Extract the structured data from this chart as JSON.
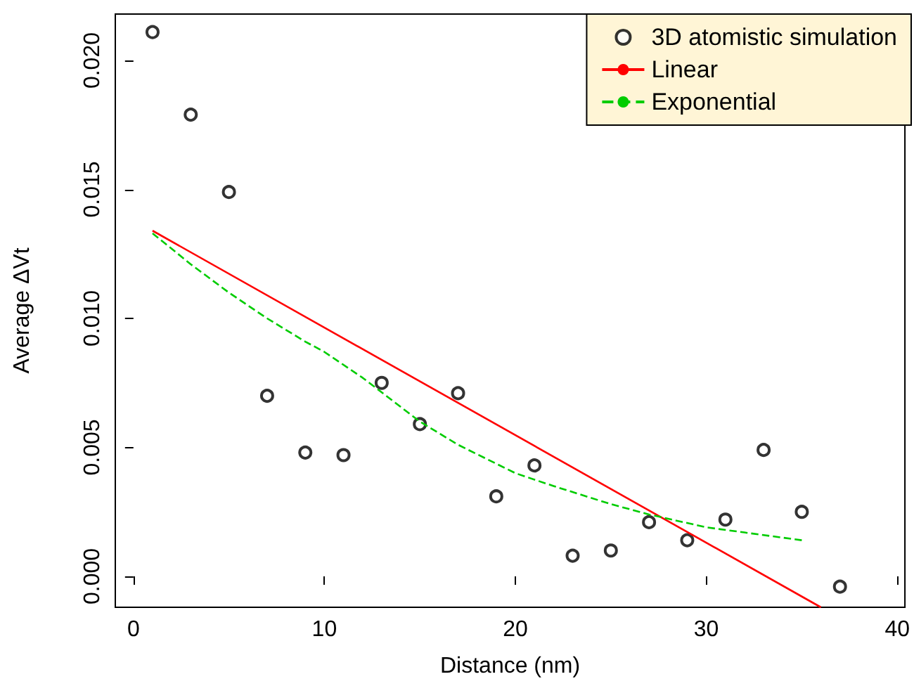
{
  "chart_data": {
    "type": "scatter",
    "xlabel": "Distance (nm)",
    "ylabel": "Average ΔVt",
    "xlim": [
      -0.95,
      40.4
    ],
    "ylim": [
      -0.0012,
      0.0218
    ],
    "xticks": [
      0,
      10,
      20,
      30,
      40
    ],
    "yticks": [
      {
        "value": 0,
        "label": "0.000"
      },
      {
        "value": 0.005,
        "label": "0.005"
      },
      {
        "value": 0.01,
        "label": "0.010"
      },
      {
        "value": 0.015,
        "label": "0.015"
      },
      {
        "value": 0.02,
        "label": "0.020"
      }
    ],
    "legend": "top right",
    "series": [
      {
        "name": "3D atomistic simulation",
        "type": "scatter",
        "marker": "circle",
        "color": "#000000",
        "x": [
          1,
          3,
          5,
          7,
          9,
          11,
          13,
          15,
          17,
          19,
          21,
          23,
          25,
          27,
          29,
          31,
          33,
          35,
          37
        ],
        "values": [
          0.0211,
          0.0179,
          0.0149,
          0.007,
          0.0048,
          0.0047,
          0.0075,
          0.0059,
          0.0071,
          0.0031,
          0.0043,
          0.0008,
          0.001,
          0.0021,
          0.0014,
          0.0022,
          0.0049,
          0.0025,
          -0.0004
        ]
      },
      {
        "name": "Linear",
        "type": "line",
        "line_style": "solid",
        "color": "#ff0000",
        "x": [
          1,
          36
        ],
        "values": [
          0.0134,
          -0.0012
        ]
      },
      {
        "name": "Exponential",
        "type": "line",
        "line_style": "dashed",
        "color": "#00cc00",
        "x": [
          1,
          3,
          5,
          7,
          9,
          10,
          12,
          15,
          17,
          20,
          22,
          25,
          27,
          30,
          32,
          35
        ],
        "values": [
          0.0133,
          0.0121,
          0.011,
          0.01,
          0.0091,
          0.0087,
          0.0077,
          0.006,
          0.0051,
          0.004,
          0.0035,
          0.0028,
          0.0024,
          0.0019,
          0.0017,
          0.0014
        ]
      }
    ]
  }
}
